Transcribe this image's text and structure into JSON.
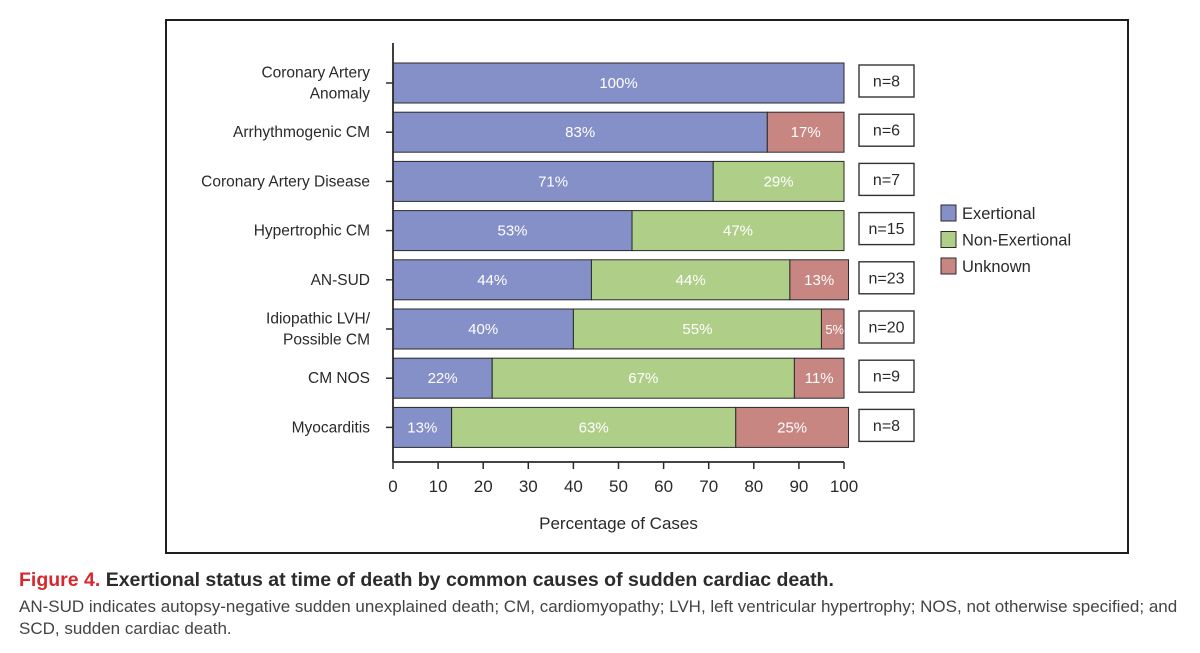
{
  "chart_data": {
    "type": "bar",
    "orientation": "horizontal",
    "stacked": true,
    "categories": [
      [
        "Coronary Artery",
        "Anomaly"
      ],
      [
        "Arrhythmogenic CM"
      ],
      [
        "Coronary Artery Disease"
      ],
      [
        "Hypertrophic CM"
      ],
      [
        "AN-SUD"
      ],
      [
        "Idiopathic LVH/",
        "Possible CM"
      ],
      [
        "CM NOS"
      ],
      [
        "Myocarditis"
      ]
    ],
    "series": [
      {
        "name": "Exertional",
        "color": "#8590c8",
        "values": [
          100,
          83,
          71,
          53,
          44,
          40,
          22,
          13
        ]
      },
      {
        "name": "Non-Exertional",
        "color": "#afcf89",
        "values": [
          0,
          0,
          29,
          47,
          44,
          55,
          67,
          63
        ]
      },
      {
        "name": "Unknown",
        "color": "#c88682",
        "values": [
          0,
          17,
          0,
          0,
          13,
          5,
          11,
          25
        ]
      }
    ],
    "n_labels": [
      "n=8",
      "n=6",
      "n=7",
      "n=15",
      "n=23",
      "n=20",
      "n=9",
      "n=8"
    ],
    "xlabel": "Percentage of Cases",
    "xlim": [
      0,
      100
    ],
    "xticks": [
      0,
      10,
      20,
      30,
      40,
      50,
      60,
      70,
      80,
      90,
      100
    ],
    "legend_position": "right"
  },
  "caption": {
    "figure_label": "Figure 4.",
    "title": "Exertional status at time of death by common causes of sudden cardiac death.",
    "description": "AN-SUD indicates autopsy-negative sudden unexplained death; CM, cardiomyopathy; LVH, left ventricular hypertrophy; NOS, not otherwise specified; and SCD, sudden cardiac death."
  }
}
